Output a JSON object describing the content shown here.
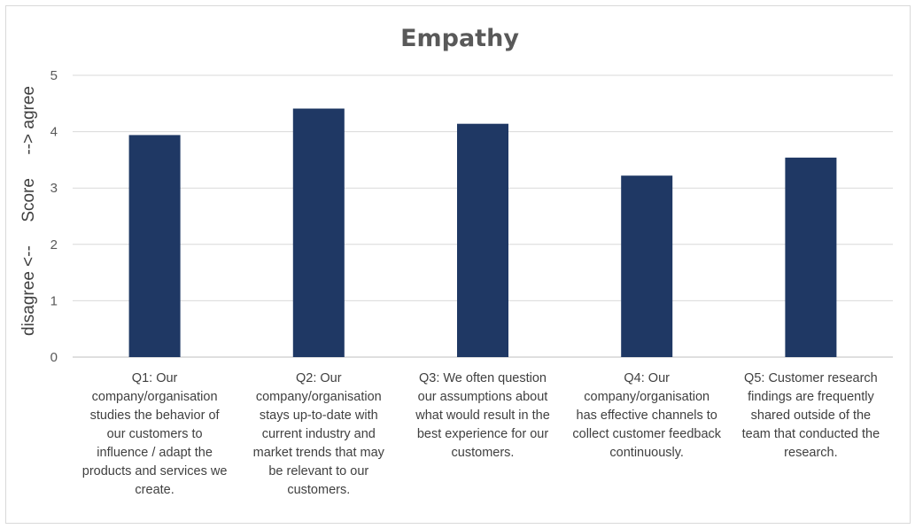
{
  "chart_data": {
    "type": "bar",
    "title": "Empathy",
    "ylabel": "disagree <--     Score     --> agree",
    "xlabel": "",
    "ylim": [
      0,
      5
    ],
    "yticks": [
      0,
      1,
      2,
      3,
      4,
      5
    ],
    "grid": true,
    "legend": "none",
    "bar_color": "#1f3864",
    "categories": [
      "Q1: Our company/organisation studies the behavior of our customers to influence / adapt the products and services we create.",
      "Q2: Our company/organisation stays up-to-date with current industry and market trends that may be relevant to our customers.",
      "Q3: We often question our assumptions about what would result in the best experience for our customers.",
      "Q4: Our company/organisation has effective channels to collect customer feedback continuously.",
      "Q5: Customer research findings are frequently shared outside of the team that conducted the research."
    ],
    "category_lines": [
      [
        "Q1: Our",
        "company/organisation",
        "studies the behavior of",
        "our customers to",
        "influence / adapt the",
        "products and services we",
        "create."
      ],
      [
        "Q2: Our",
        "company/organisation",
        "stays up-to-date with",
        "current industry and",
        "market trends that may",
        "be relevant to our",
        "customers."
      ],
      [
        "Q3: We often question",
        "our assumptions about",
        "what would result in the",
        "best experience for our",
        "customers."
      ],
      [
        "Q4: Our",
        "company/organisation",
        "has effective channels to",
        "collect customer feedback",
        "continuously."
      ],
      [
        "Q5: Customer research",
        "findings are frequently",
        "shared outside of the",
        "team that conducted the",
        "research."
      ]
    ],
    "values": [
      3.94,
      4.41,
      4.14,
      3.22,
      3.54
    ]
  }
}
